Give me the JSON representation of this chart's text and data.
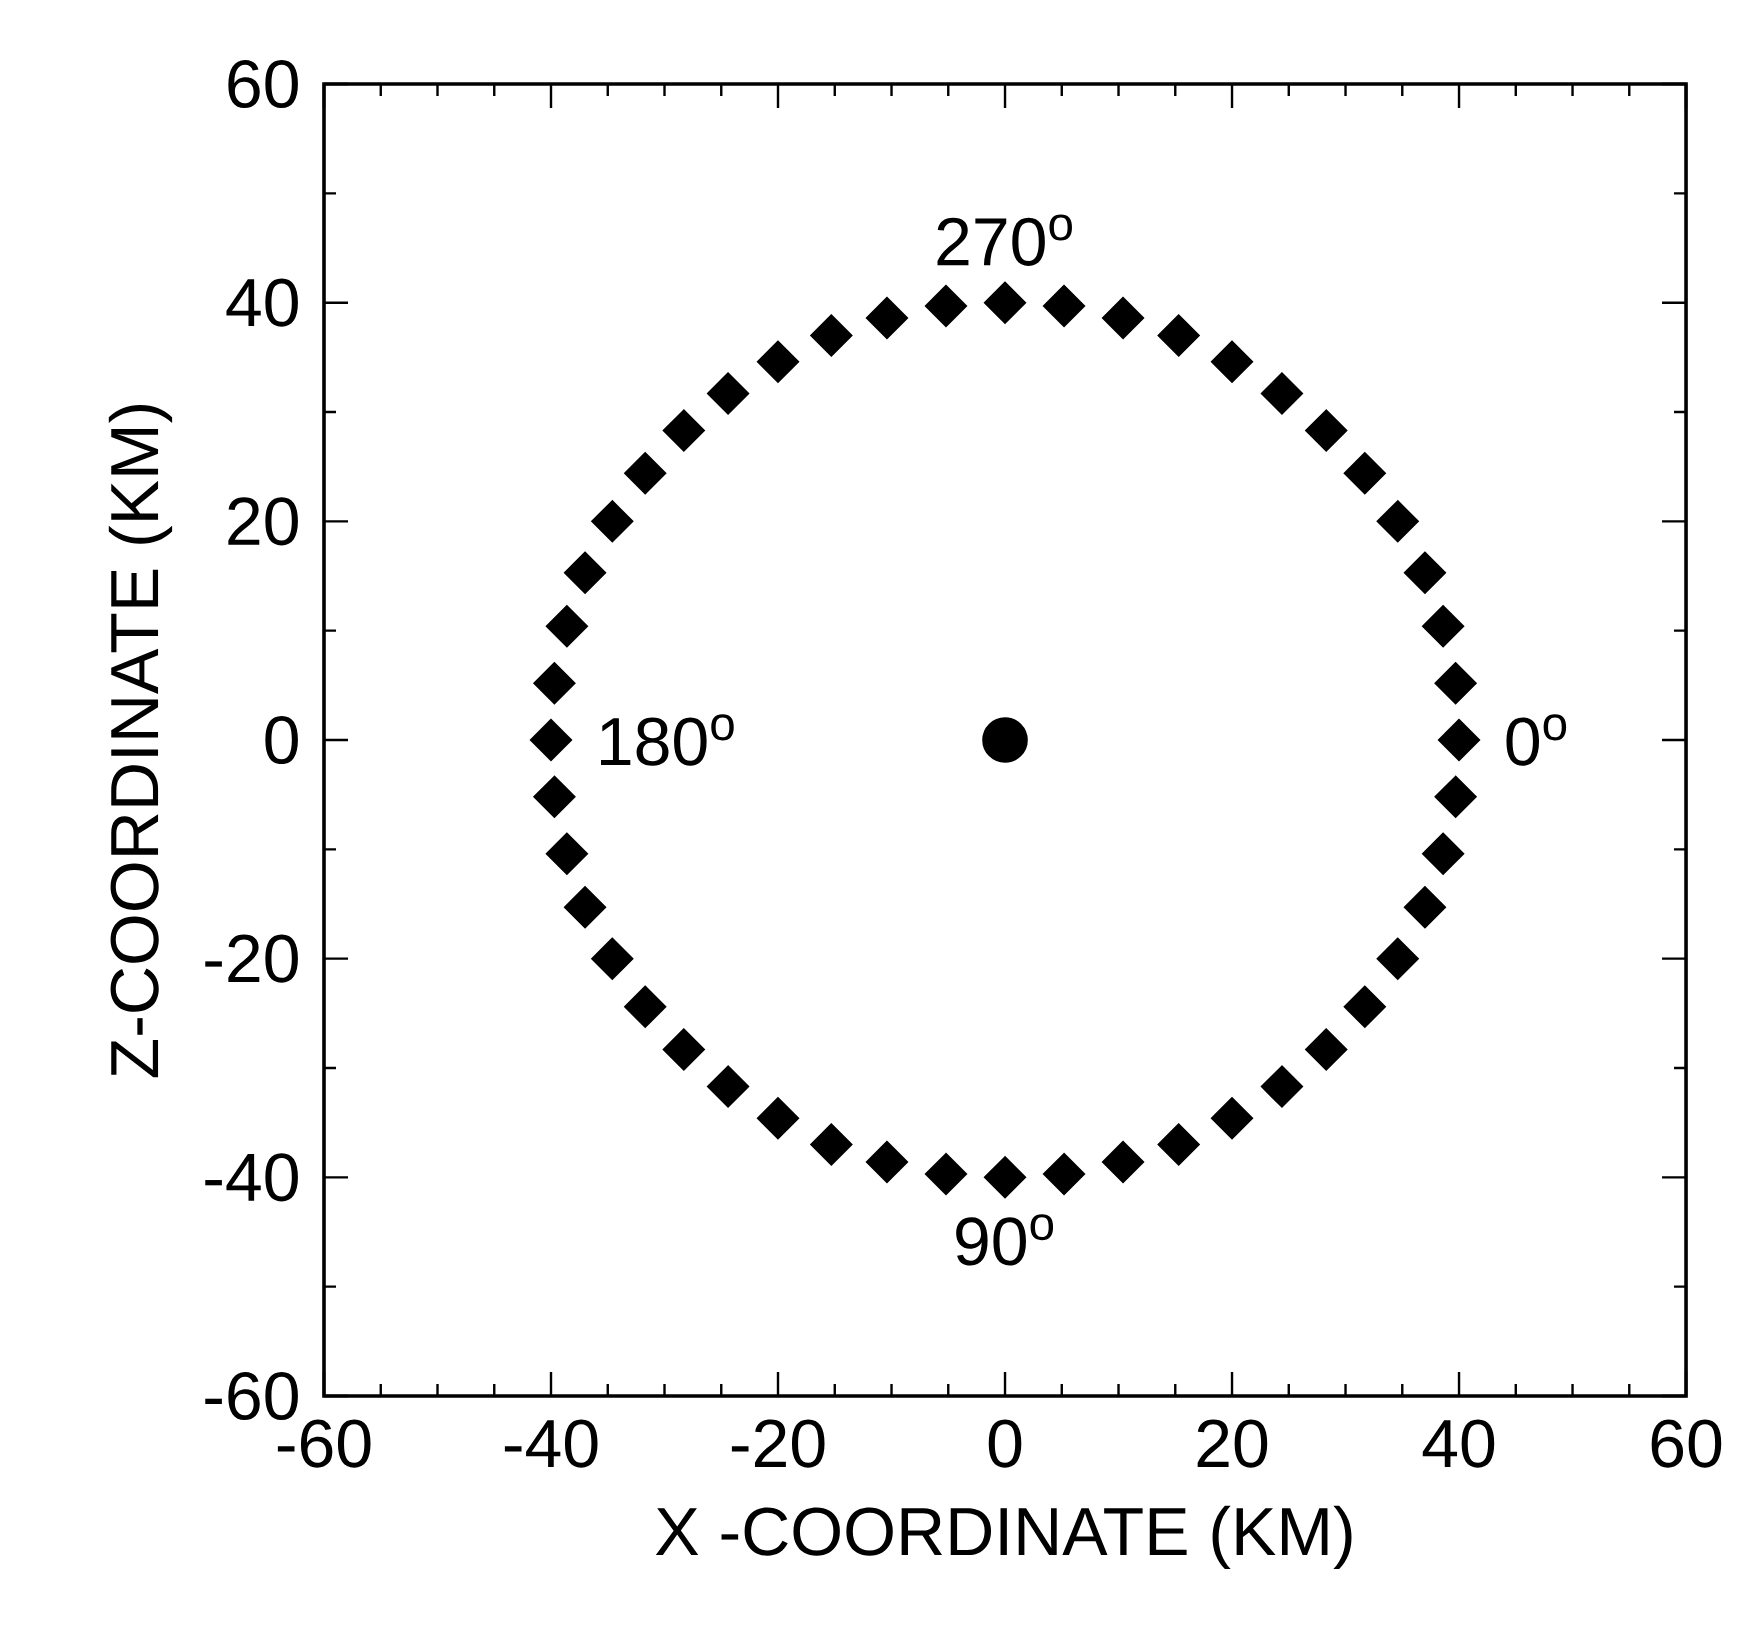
{
  "chart_data": {
    "type": "scatter",
    "xlabel": "X -COORDINATE (KM)",
    "ylabel": "Z-COORDINATE (KM)",
    "xlim": [
      -60,
      60
    ],
    "ylim": [
      -60,
      60
    ],
    "xticks": [
      -60,
      -40,
      -20,
      0,
      20,
      40,
      60
    ],
    "yticks": [
      -60,
      -40,
      -20,
      0,
      20,
      40,
      60
    ],
    "marker": "diamond",
    "grid": false,
    "series": [
      {
        "color": "#000000",
        "x": [
          40,
          39.7,
          38.6,
          37,
          34.6,
          31.7,
          28.3,
          24.4,
          20,
          15.3,
          10.4,
          5.2,
          0,
          -5.2,
          -10.4,
          -15.3,
          -20,
          -24.4,
          -28.3,
          -31.7,
          -34.6,
          -37,
          -38.6,
          -39.7,
          -40,
          -39.7,
          -38.6,
          -37,
          -34.6,
          -31.7,
          -28.3,
          -24.4,
          -20,
          -15.3,
          -10.4,
          -5.2,
          0,
          5.2,
          10.4,
          15.3,
          20,
          24.4,
          28.3,
          31.7,
          34.6,
          37,
          38.6,
          39.7
        ],
        "values": [
          0,
          -5.2,
          -10.4,
          -15.3,
          -20,
          -24.4,
          -28.3,
          -31.7,
          -34.6,
          -37,
          -38.6,
          -39.7,
          -40,
          -39.7,
          -38.6,
          -37,
          -34.6,
          -31.7,
          -28.3,
          -24.4,
          -20,
          -15.3,
          -10.4,
          -5.2,
          0,
          5.2,
          10.4,
          15.3,
          20,
          24.4,
          28.3,
          31.7,
          34.6,
          37,
          38.6,
          39.7,
          40,
          39.7,
          38.6,
          37,
          34.6,
          31.7,
          28.3,
          24.4,
          20,
          15.3,
          10.4,
          5.2
        ]
      },
      {
        "color": "#000000",
        "marker": "circle",
        "x": [
          0
        ],
        "values": [
          0
        ]
      }
    ],
    "annotations": [
      {
        "text": "0$^{o}$",
        "x": 40,
        "y": 0
      },
      {
        "text": "90$^{o}$",
        "x": 0,
        "y": -40
      },
      {
        "text": "180$^{o}$",
        "x": -40,
        "y": 0
      },
      {
        "text": "270$^{o}$",
        "x": 0,
        "y": 40
      }
    ]
  }
}
